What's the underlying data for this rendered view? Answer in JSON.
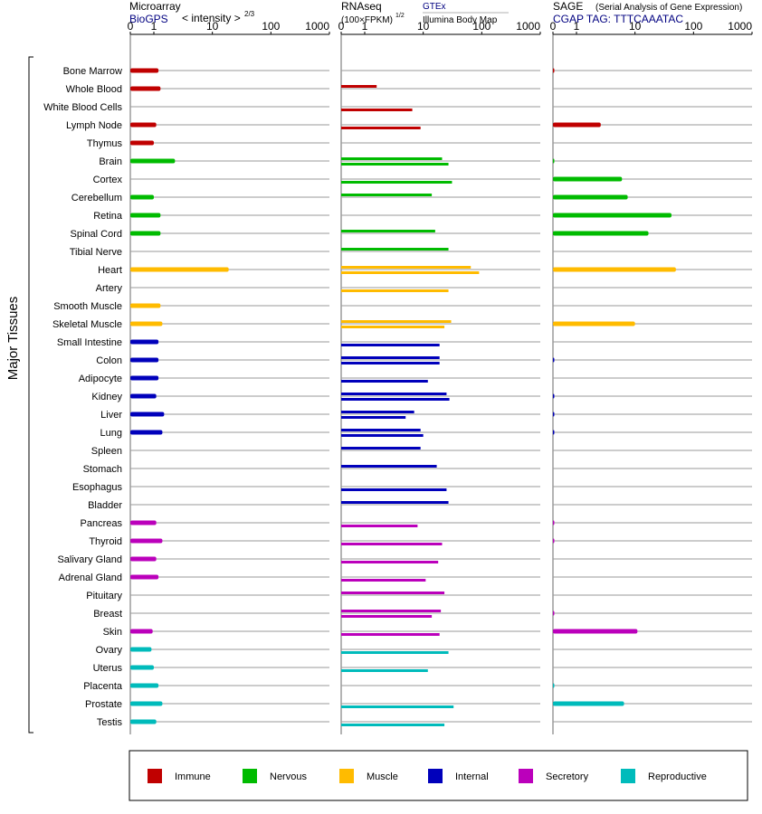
{
  "panels": [
    {
      "title": "Microarray",
      "source": "BioGPS",
      "scale_label": "< intensity >",
      "scale_exponent": "2/3",
      "source_color": "#000080"
    },
    {
      "title": "RNAseq",
      "scale_label": "(100×FPKM)",
      "scale_exponent": "1/2",
      "sources": [
        "GTEx",
        "Illumina Body Map"
      ],
      "source_colors": [
        "#000080",
        "#000000"
      ]
    },
    {
      "title": "SAGE",
      "subtitle": "(Serial Analysis of Gene Expression)",
      "tag": "CGAP TAG: TTTCAAATAC",
      "tag_color": "#000080"
    }
  ],
  "axis_ticks": [
    "0",
    "1",
    "10",
    "100",
    "1000"
  ],
  "axis_tick_values": [
    0,
    1,
    10,
    100,
    1000
  ],
  "y_axis_title": "Major Tissues",
  "legend": [
    {
      "name": "Immune",
      "color": "#c00000"
    },
    {
      "name": "Nervous",
      "color": "#00bb00"
    },
    {
      "name": "Muscle",
      "color": "#ffbb00"
    },
    {
      "name": "Internal",
      "color": "#0000bb"
    },
    {
      "name": "Secretory",
      "color": "#bb00bb"
    },
    {
      "name": "Reproductive",
      "color": "#00bbbb"
    }
  ],
  "chart_data": {
    "type": "bar",
    "orientation": "horizontal",
    "x_scale": "log-like (0, 1, 10, 100, 1000)",
    "categories": [
      "Bone Marrow",
      "Whole Blood",
      "White Blood Cells",
      "Lymph Node",
      "Thymus",
      "Brain",
      "Cortex",
      "Cerebellum",
      "Retina",
      "Spinal Cord",
      "Tibial Nerve",
      "Heart",
      "Artery",
      "Smooth Muscle",
      "Skeletal Muscle",
      "Small Intestine",
      "Colon",
      "Adipocyte",
      "Kidney",
      "Liver",
      "Lung",
      "Spleen",
      "Stomach",
      "Esophagus",
      "Bladder",
      "Pancreas",
      "Thyroid",
      "Salivary Gland",
      "Adrenal Gland",
      "Pituitary",
      "Breast",
      "Skin",
      "Ovary",
      "Uterus",
      "Placenta",
      "Prostate",
      "Testis"
    ],
    "groups": [
      "Immune",
      "Immune",
      "Immune",
      "Immune",
      "Immune",
      "Nervous",
      "Nervous",
      "Nervous",
      "Nervous",
      "Nervous",
      "Nervous",
      "Muscle",
      "Muscle",
      "Muscle",
      "Muscle",
      "Internal",
      "Internal",
      "Internal",
      "Internal",
      "Internal",
      "Internal",
      "Internal",
      "Internal",
      "Internal",
      "Internal",
      "Secretory",
      "Secretory",
      "Secretory",
      "Secretory",
      "Secretory",
      "Secretory",
      "Secretory",
      "Reproductive",
      "Reproductive",
      "Reproductive",
      "Reproductive",
      "Reproductive"
    ],
    "series": [
      {
        "name": "Microarray",
        "values": [
          1.2,
          1.3,
          null,
          1.1,
          1.0,
          2.3,
          null,
          1.0,
          1.3,
          1.3,
          null,
          19,
          null,
          1.3,
          1.4,
          1.2,
          1.2,
          1.2,
          1.1,
          1.5,
          1.4,
          null,
          null,
          null,
          null,
          1.1,
          1.4,
          1.1,
          1.2,
          null,
          null,
          0.95,
          0.9,
          1.0,
          1.2,
          1.4,
          1.1
        ]
      },
      {
        "name": "GTEx",
        "values": [
          null,
          1.6,
          null,
          null,
          null,
          21,
          null,
          14,
          null,
          16,
          27,
          65,
          null,
          null,
          30,
          null,
          19,
          null,
          25,
          7,
          9,
          9,
          17,
          null,
          27,
          null,
          null,
          null,
          null,
          23,
          20,
          null,
          null,
          null,
          null,
          null,
          null
        ]
      },
      {
        "name": "Illumina Body Map",
        "values": [
          null,
          null,
          6.5,
          9,
          null,
          27,
          31,
          null,
          null,
          null,
          null,
          90,
          27,
          null,
          23,
          19,
          19,
          12,
          28,
          5,
          10,
          null,
          null,
          25,
          null,
          8,
          21,
          18,
          11,
          null,
          14,
          19,
          27,
          12,
          null,
          33,
          23
        ]
      },
      {
        "name": "SAGE",
        "values": [
          0.03,
          null,
          null,
          2.6,
          null,
          0.05,
          6,
          7.5,
          42,
          17,
          null,
          50,
          null,
          null,
          10,
          null,
          0.02,
          null,
          0.03,
          0.03,
          0.03,
          null,
          null,
          null,
          null,
          0.02,
          0.02,
          null,
          null,
          null,
          0.02,
          11,
          null,
          null,
          0.03,
          6.5,
          null
        ]
      }
    ]
  }
}
